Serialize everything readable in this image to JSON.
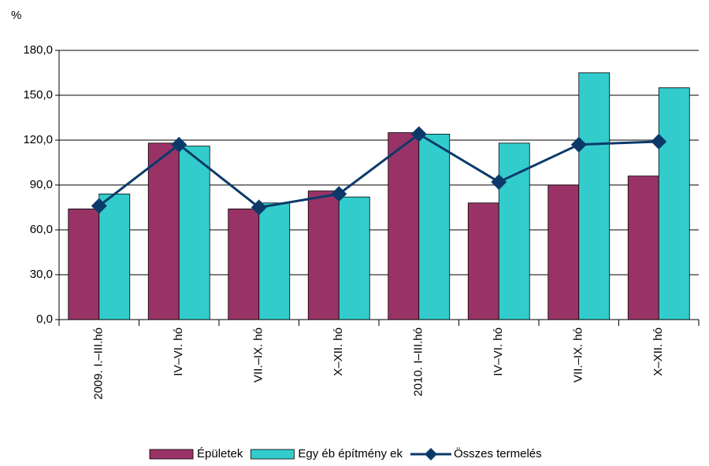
{
  "chart_data": {
    "type": "bar",
    "y_label": "%",
    "categories": [
      "2009. I.–III.hó",
      "IV–VI. hó",
      "VII.–IX. hó",
      "X–XII. hó",
      "2010. I–III.hó",
      "IV–VI. hó",
      "VII.–IX. hó",
      "X–XII. hó"
    ],
    "series": [
      {
        "name": "Épületek",
        "type": "bar",
        "color": "#993366",
        "values": [
          74,
          118,
          74,
          86,
          125,
          78,
          90,
          96
        ]
      },
      {
        "name": "Egy éb építmény ek",
        "type": "bar",
        "color": "#33cccc",
        "values": [
          84,
          116,
          78,
          82,
          124,
          118,
          165,
          155
        ]
      },
      {
        "name": "Összes termelés",
        "type": "line",
        "color": "#0b3a6a",
        "values": [
          76,
          117,
          75,
          84,
          124,
          92,
          117,
          119
        ]
      }
    ],
    "ylim": [
      0,
      180
    ],
    "yticks": [
      {
        "value": 0,
        "label": "0,0"
      },
      {
        "value": 30,
        "label": "30,0"
      },
      {
        "value": 60,
        "label": "60,0"
      },
      {
        "value": 90,
        "label": "90,0"
      },
      {
        "value": 120,
        "label": "120,0"
      },
      {
        "value": 150,
        "label": "150,0"
      },
      {
        "value": 180,
        "label": "180,0"
      }
    ],
    "grid": true,
    "legend": "bottom"
  }
}
